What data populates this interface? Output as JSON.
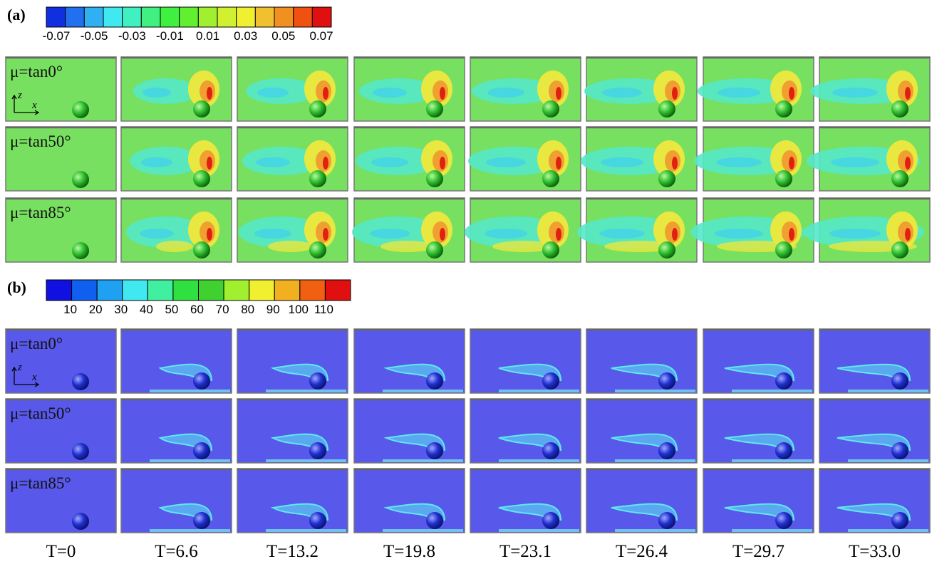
{
  "panels": [
    {
      "label": "(a)",
      "colorbar": {
        "labels": [
          "-0.07",
          "-0.05",
          "-0.03",
          "-0.01",
          "0.01",
          "0.03",
          "0.05",
          "0.07"
        ],
        "colors": [
          "#1030e0",
          "#2070f0",
          "#30b0f0",
          "#40e8f0",
          "#40f0c0",
          "#40f080",
          "#40f040",
          "#60f030",
          "#a0f030",
          "#d0f030",
          "#f0f030",
          "#f0c030",
          "#f09020",
          "#f05010",
          "#e01010"
        ]
      },
      "rows": [
        {
          "label": "μ=tan0°"
        },
        {
          "label": "μ=tan50°"
        },
        {
          "label": "μ=tan85°"
        }
      ]
    },
    {
      "label": "(b)",
      "colorbar": {
        "labels": [
          "10",
          "20",
          "30",
          "40",
          "50",
          "60",
          "70",
          "80",
          "90",
          "100",
          "110"
        ],
        "colors": [
          "#1010e0",
          "#1060f0",
          "#20a0f0",
          "#40e8f0",
          "#40f0a0",
          "#30e040",
          "#40d030",
          "#a0f030",
          "#f0f030",
          "#f0b020",
          "#f06010",
          "#e01010"
        ]
      },
      "rows": [
        {
          "label": "μ=tan0°"
        },
        {
          "label": "μ=tan50°"
        },
        {
          "label": "μ=tan85°"
        }
      ]
    }
  ],
  "axes": {
    "z": "z",
    "x": "x"
  },
  "time_labels": [
    "T=0",
    "T=6.6",
    "T=13.2",
    "T=19.8",
    "T=23.1",
    "T=26.4",
    "T=29.7",
    "T=33.0"
  ]
}
